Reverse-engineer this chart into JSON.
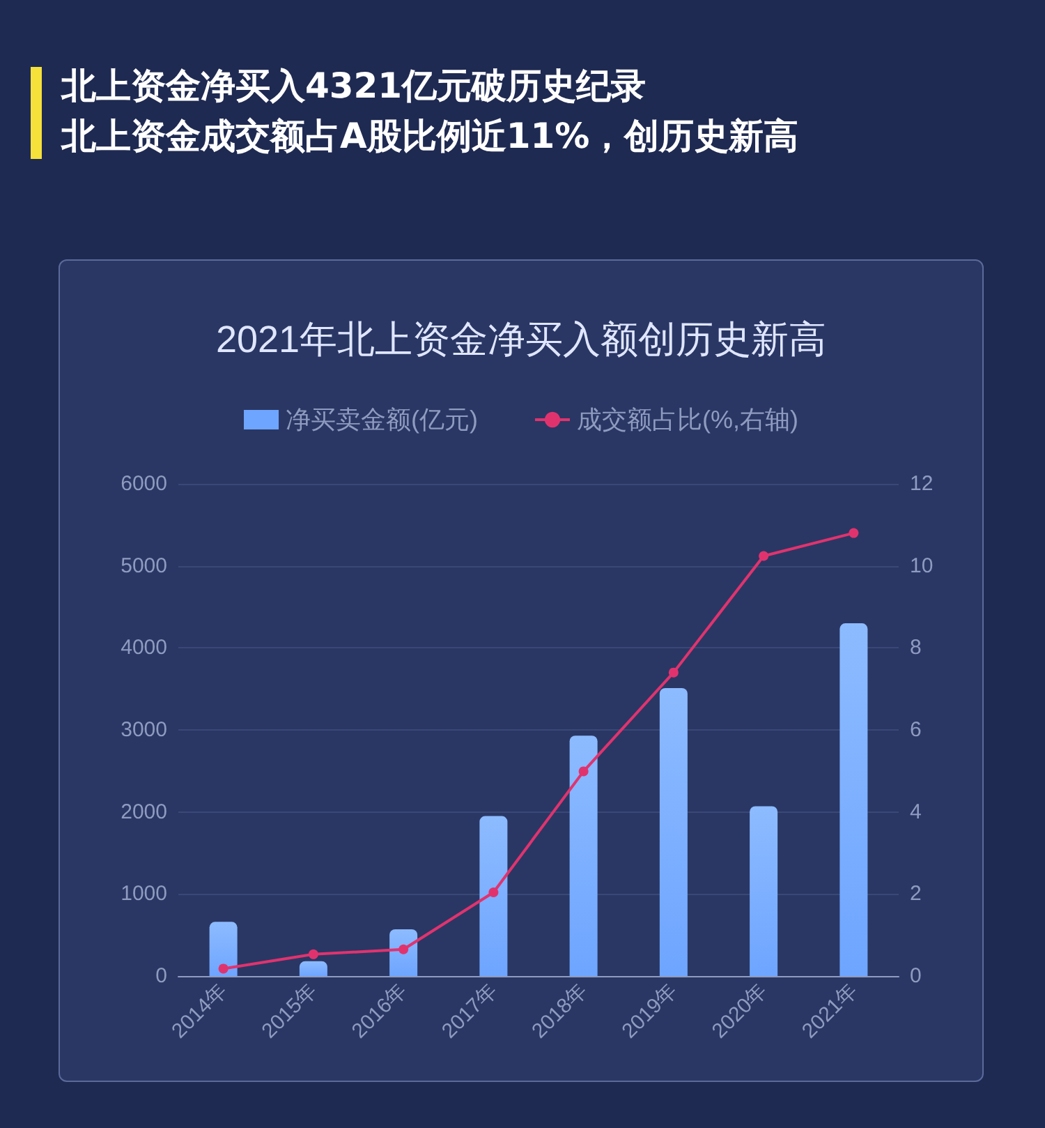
{
  "chart_data": {
    "type": "bar",
    "title": "2021年北上资金净买入额创历史新高",
    "annotations": [
      "北上资金净买入4321亿元破历史纪录",
      "北上资金成交额占A股比例近11%，创历史新高"
    ],
    "categories": [
      "2014年",
      "2015年",
      "2016年",
      "2017年",
      "2018年",
      "2019年",
      "2020年",
      "2021年"
    ],
    "series": [
      {
        "name": "净买卖金额(亿元)",
        "color": "#6ea5ff",
        "values": [
          660,
          180,
          570,
          1950,
          2930,
          3510,
          2070,
          4300
        ]
      },
      {
        "name": "成交额占比(%,右轴)",
        "type": "line",
        "axis": "y2",
        "color": "#e0336e",
        "marker": "circle",
        "values": [
          0.18,
          0.53,
          0.65,
          2.04,
          4.99,
          7.4,
          10.24,
          10.8
        ]
      }
    ],
    "ylim": [
      0,
      6000
    ],
    "yticks": [
      0,
      1000,
      2000,
      3000,
      4000,
      5000,
      6000
    ],
    "y2lim": [
      0,
      12
    ],
    "y2ticks": [
      0,
      2,
      4,
      6,
      8,
      10,
      12
    ],
    "grid": "y",
    "legend": "top"
  }
}
